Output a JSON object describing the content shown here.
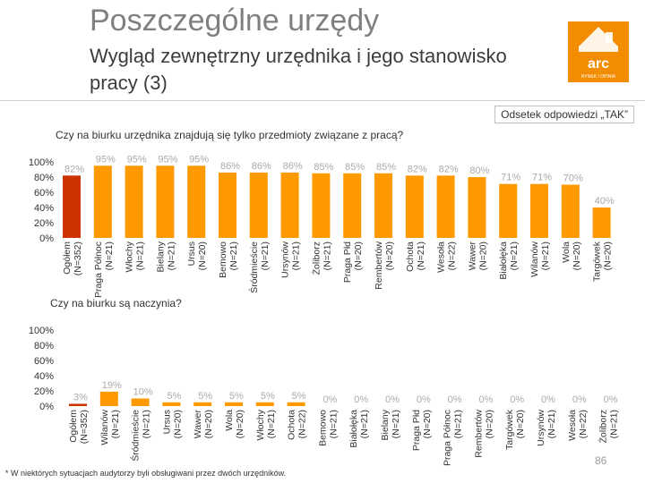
{
  "header": {
    "title": "Poszczególne urzędy",
    "subtitle": "Wygląd zewnętrzny urzędnika i jego stanowisko pracy (3)",
    "legend_note": "Odsetek odpowiedzi „TAK”"
  },
  "logo": {
    "text": "arc",
    "tagline": "RYNEK I OPINIA"
  },
  "colors": {
    "highlight": "#cc3300",
    "bar": "#ff9900",
    "label": "#aaaaaa"
  },
  "footnote": "* W niektórych sytuacjach audytorzy byli obsługiwani przez dwóch urzędników.",
  "page_number": "86",
  "chart_data": [
    {
      "type": "bar",
      "title": "Czy na biurku urzędnika znajdują się tylko przedmioty związane z pracą?",
      "ylim": [
        0,
        100
      ],
      "yticks": [
        "100%",
        "80%",
        "60%",
        "40%",
        "20%",
        "0%"
      ],
      "categories": [
        {
          "name": "Ogółem",
          "n": "(N=352)",
          "value": 82,
          "label": "82%",
          "highlight": true
        },
        {
          "name": "Praga Północ",
          "n": "(N=21)",
          "value": 95,
          "label": "95%"
        },
        {
          "name": "Włochy",
          "n": "(N=21)",
          "value": 95,
          "label": "95%"
        },
        {
          "name": "Bielany",
          "n": "(N=21)",
          "value": 95,
          "label": "95%"
        },
        {
          "name": "Ursus",
          "n": "(N=20)",
          "value": 95,
          "label": "95%"
        },
        {
          "name": "Bemowo",
          "n": "(N=21)",
          "value": 86,
          "label": "86%"
        },
        {
          "name": "Śródmieście",
          "n": "(N=21)",
          "value": 86,
          "label": "86%"
        },
        {
          "name": "Ursynów",
          "n": "(N=21)",
          "value": 86,
          "label": "86%"
        },
        {
          "name": "Żoliborz",
          "n": "(N=21)",
          "value": 85,
          "label": "85%"
        },
        {
          "name": "Praga Płd",
          "n": "(N=20)",
          "value": 85,
          "label": "85%"
        },
        {
          "name": "Rembertów",
          "n": "(N=20)",
          "value": 85,
          "label": "85%"
        },
        {
          "name": "Ochota",
          "n": "(N=21)",
          "value": 82,
          "label": "82%"
        },
        {
          "name": "Wesoła",
          "n": "(N=22)",
          "value": 82,
          "label": "82%"
        },
        {
          "name": "Wawer",
          "n": "(N=20)",
          "value": 80,
          "label": "80%"
        },
        {
          "name": "Białołęka",
          "n": "(N=21)",
          "value": 71,
          "label": "71%"
        },
        {
          "name": "Wilanów",
          "n": "(N=21)",
          "value": 71,
          "label": "71%"
        },
        {
          "name": "Wola",
          "n": "(N=20)",
          "value": 70,
          "label": "70%"
        },
        {
          "name": "Targówek",
          "n": "(N=20)",
          "value": 40,
          "label": "40%"
        }
      ]
    },
    {
      "type": "bar",
      "title": "Czy na biurku są naczynia?",
      "ylim": [
        0,
        100
      ],
      "yticks": [
        "100%",
        "80%",
        "60%",
        "40%",
        "20%",
        "0%"
      ],
      "categories": [
        {
          "name": "Ogółem",
          "n": "(N=352)",
          "value": 3,
          "label": "3%",
          "highlight": true
        },
        {
          "name": "Wilanów",
          "n": "(N=21)",
          "value": 19,
          "label": "19%"
        },
        {
          "name": "Śródmieście",
          "n": "(N=21)",
          "value": 10,
          "label": "10%"
        },
        {
          "name": "Ursus",
          "n": "(N=20)",
          "value": 5,
          "label": "5%"
        },
        {
          "name": "Wawer",
          "n": "(N=20)",
          "value": 5,
          "label": "5%"
        },
        {
          "name": "Wola",
          "n": "(N=20)",
          "value": 5,
          "label": "5%"
        },
        {
          "name": "Włochy",
          "n": "(N=21)",
          "value": 5,
          "label": "5%"
        },
        {
          "name": "Ochota",
          "n": "(N=22)",
          "value": 5,
          "label": "5%"
        },
        {
          "name": "Bemowo",
          "n": "(N=21)",
          "value": 0,
          "label": "0%"
        },
        {
          "name": "Białołęka",
          "n": "(N=21)",
          "value": 0,
          "label": "0%"
        },
        {
          "name": "Bielany",
          "n": "(N=21)",
          "value": 0,
          "label": "0%"
        },
        {
          "name": "Praga Płd",
          "n": "(N=20)",
          "value": 0,
          "label": "0%"
        },
        {
          "name": "Praga Północ",
          "n": "(N=21)",
          "value": 0,
          "label": "0%"
        },
        {
          "name": "Rembertów",
          "n": "(N=20)",
          "value": 0,
          "label": "0%"
        },
        {
          "name": "Targówek",
          "n": "(N=20)",
          "value": 0,
          "label": "0%"
        },
        {
          "name": "Ursynów",
          "n": "(N=21)",
          "value": 0,
          "label": "0%"
        },
        {
          "name": "Wesoła",
          "n": "(N=22)",
          "value": 0,
          "label": "0%"
        },
        {
          "name": "Żoliborz",
          "n": "(N=21)",
          "value": 0,
          "label": "0%"
        }
      ]
    }
  ]
}
